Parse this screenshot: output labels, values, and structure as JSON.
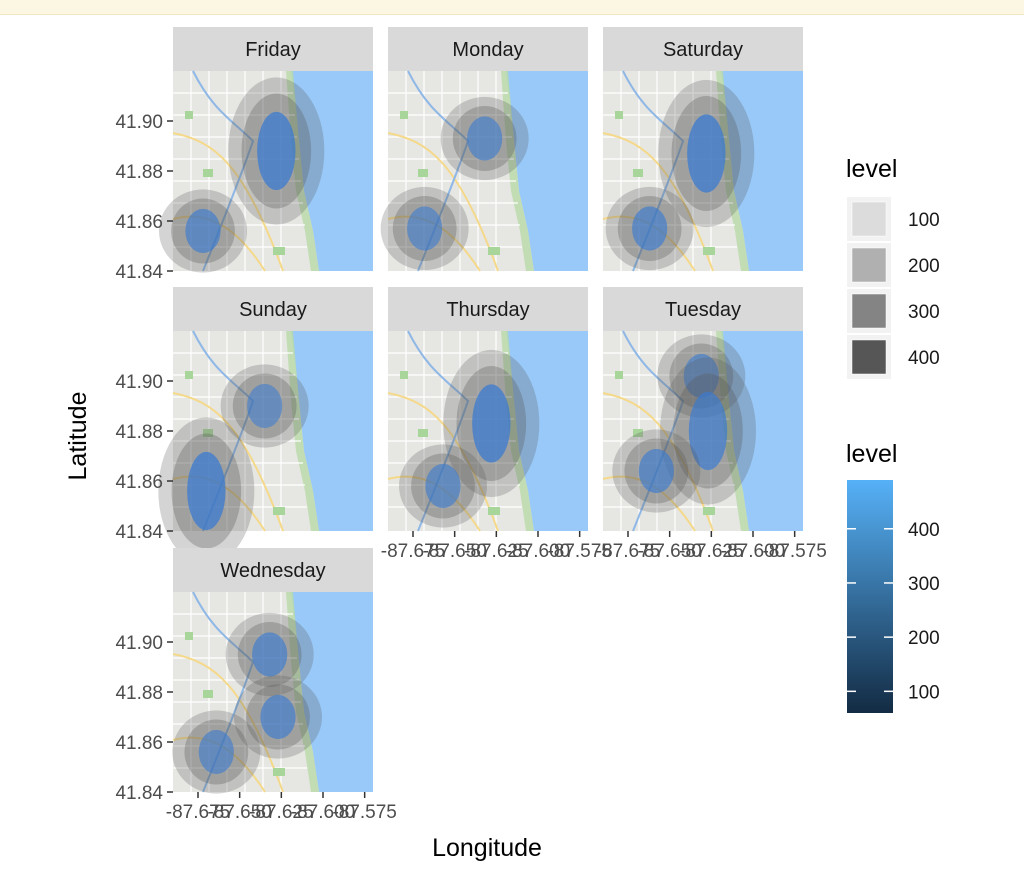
{
  "chart_data": {
    "type": "heatmap",
    "subtype": "faceted 2D density contours over street-map tiles",
    "xlabel": "Longitude",
    "ylabel": "Latitude",
    "xlim": [
      -87.69,
      -87.57
    ],
    "ylim": [
      41.84,
      41.92
    ],
    "x_ticks": [
      "-87.675",
      "-87.650",
      "-87.625",
      "-87.600",
      "-87.575"
    ],
    "y_ticks": [
      "41.84",
      "41.86",
      "41.88",
      "41.90"
    ],
    "facets": [
      "Friday",
      "Monday",
      "Saturday",
      "Sunday",
      "Thursday",
      "Tuesday",
      "Wednesday"
    ],
    "grid": false,
    "legends": [
      {
        "title": "level",
        "kind": "alpha",
        "entries": [
          "100",
          "200",
          "300",
          "400"
        ],
        "swatch_colors": [
          "#dcdcdc",
          "#b0b0b0",
          "#848484",
          "#565656"
        ]
      },
      {
        "title": "level",
        "kind": "colorbar",
        "breaks": [
          "400",
          "300",
          "200",
          "100"
        ],
        "range": [
          60,
          490
        ],
        "colors": {
          "low": "#132b43",
          "high": "#56b1f7"
        }
      }
    ],
    "density_levels": {
      "Friday": [
        {
          "lon": -87.628,
          "lat": 41.888,
          "level": 420
        },
        {
          "lon": -87.672,
          "lat": 41.856,
          "level": 330
        }
      ],
      "Monday": [
        {
          "lon": -87.632,
          "lat": 41.893,
          "level": 300
        },
        {
          "lon": -87.668,
          "lat": 41.857,
          "level": 280
        }
      ],
      "Saturday": [
        {
          "lon": -87.628,
          "lat": 41.887,
          "level": 400
        },
        {
          "lon": -87.662,
          "lat": 41.857,
          "level": 330
        }
      ],
      "Sunday": [
        {
          "lon": -87.67,
          "lat": 41.856,
          "level": 470
        },
        {
          "lon": -87.635,
          "lat": 41.89,
          "level": 270
        }
      ],
      "Thursday": [
        {
          "lon": -87.628,
          "lat": 41.883,
          "level": 420
        },
        {
          "lon": -87.657,
          "lat": 41.858,
          "level": 300
        }
      ],
      "Tuesday": [
        {
          "lon": -87.631,
          "lat": 41.902,
          "level": 300
        },
        {
          "lon": -87.627,
          "lat": 41.88,
          "level": 360
        },
        {
          "lon": -87.658,
          "lat": 41.864,
          "level": 320
        }
      ],
      "Wednesday": [
        {
          "lon": -87.632,
          "lat": 41.895,
          "level": 330
        },
        {
          "lon": -87.627,
          "lat": 41.87,
          "level": 330
        },
        {
          "lon": -87.664,
          "lat": 41.856,
          "level": 290
        }
      ]
    }
  },
  "colors": {
    "lake": "#99c9f8",
    "land": "#e6e6e3",
    "strip": "#d9d9d9",
    "density": "#3b7bd0"
  }
}
